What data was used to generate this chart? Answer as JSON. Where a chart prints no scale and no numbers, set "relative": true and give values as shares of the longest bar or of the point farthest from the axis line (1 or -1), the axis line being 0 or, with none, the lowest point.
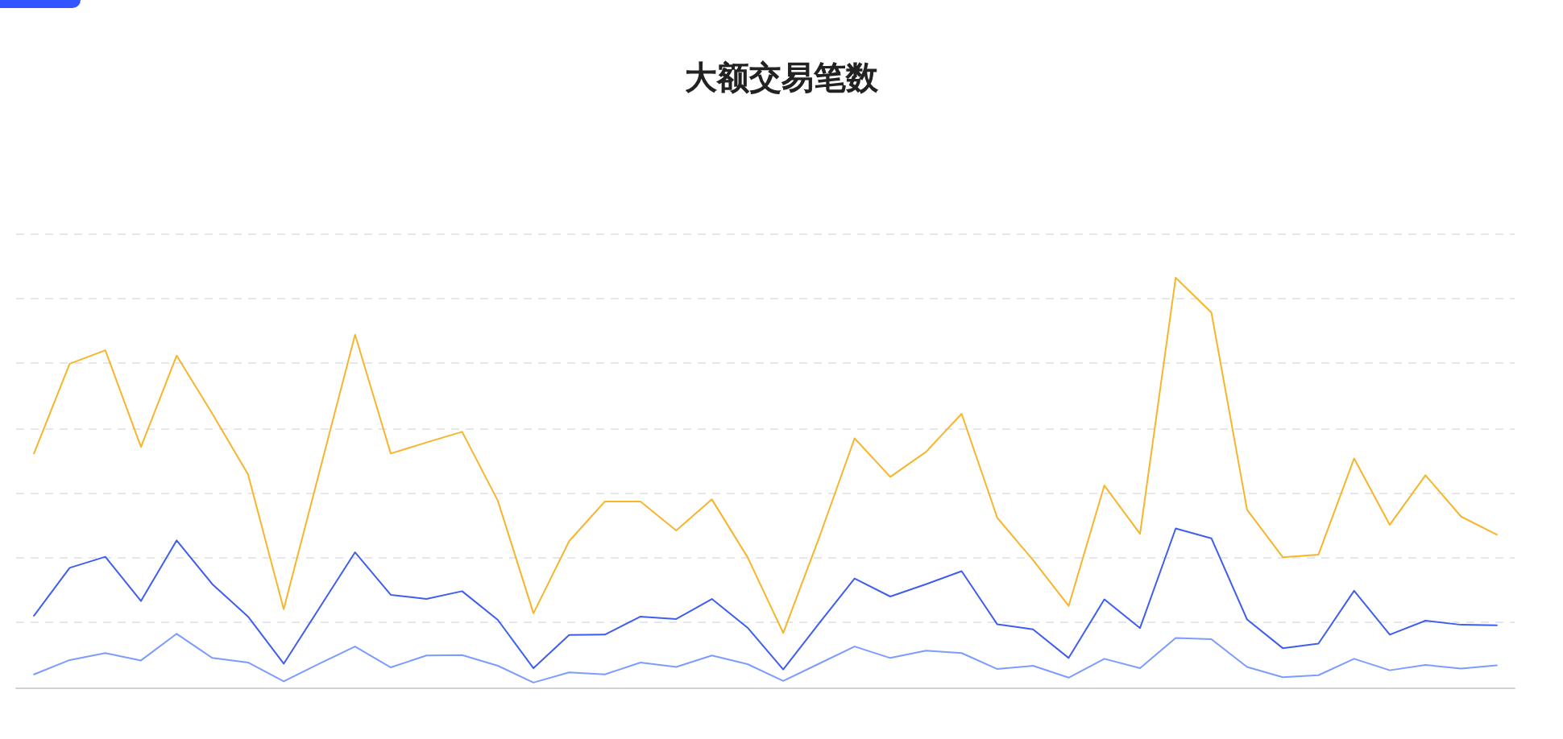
{
  "chart_data": {
    "type": "line",
    "title": "大额交易笔数",
    "relative": true,
    "grid": "y",
    "marker": "none",
    "categories": [
      null,
      null,
      null,
      null,
      null,
      null,
      null,
      null,
      null,
      null,
      null,
      null,
      null,
      null,
      null,
      null,
      null,
      null,
      null,
      null,
      null,
      null,
      null,
      null,
      null,
      null,
      null,
      null,
      null,
      null,
      null,
      null,
      null,
      null,
      null,
      null,
      null,
      null,
      null,
      null,
      null,
      null
    ],
    "series": [
      {
        "color": "#f7b52c",
        "values": [
          0.571,
          0.79,
          0.823,
          0.587,
          0.81,
          0.668,
          0.52,
          0.191,
          0.526,
          0.861,
          0.571,
          0.598,
          0.624,
          0.456,
          0.181,
          0.357,
          0.454,
          0.454,
          0.383,
          0.459,
          0.318,
          0.133,
          0.364,
          0.608,
          0.514,
          0.575,
          0.668,
          0.414,
          0.311,
          0.199,
          0.493,
          0.375,
          1,
          0.915,
          0.434,
          0.318,
          0.324,
          0.559,
          0.397,
          0.518,
          0.417,
          0.373
        ]
      },
      {
        "color": "#3f5ef0",
        "values": [
          0.175,
          0.292,
          0.319,
          0.211,
          0.359,
          0.252,
          0.173,
          0.058,
          0.194,
          0.33,
          0.226,
          0.216,
          0.235,
          0.165,
          0.047,
          0.128,
          0.129,
          0.173,
          0.167,
          0.216,
          0.146,
          0.044,
          0.156,
          0.266,
          0.222,
          0.252,
          0.284,
          0.154,
          0.142,
          0.072,
          0.215,
          0.145,
          0.388,
          0.364,
          0.166,
          0.096,
          0.107,
          0.236,
          0.129,
          0.163,
          0.153,
          0.152
        ]
      },
      {
        "color": "#7c9cff",
        "values": [
          0.032,
          0.067,
          0.084,
          0.066,
          0.131,
          0.072,
          0.061,
          0.015,
          0.058,
          0.1,
          0.049,
          0.078,
          0.079,
          0.053,
          0.012,
          0.037,
          0.032,
          0.061,
          0.05,
          0.078,
          0.057,
          0.016,
          0.058,
          0.1,
          0.072,
          0.09,
          0.084,
          0.045,
          0.053,
          0.024,
          0.07,
          0.047,
          0.121,
          0.118,
          0.05,
          0.025,
          0.03,
          0.07,
          0.042,
          0.055,
          0.046,
          0.054
        ]
      }
    ]
  }
}
